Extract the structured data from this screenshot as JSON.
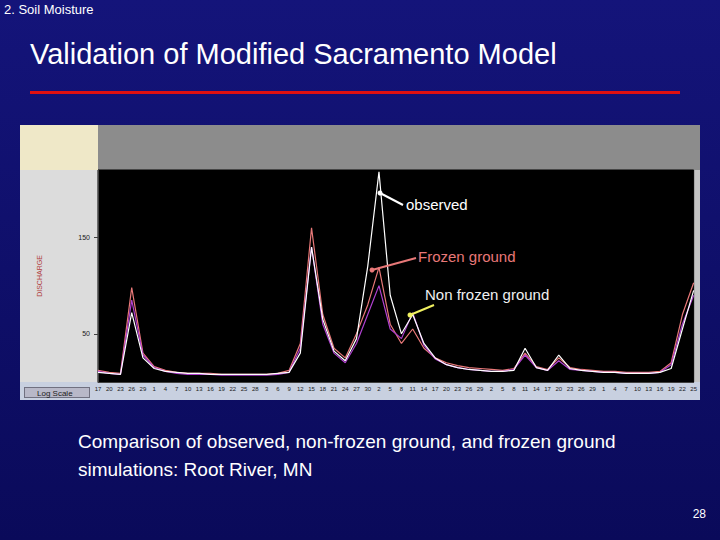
{
  "slide": {
    "section": "2. Soil Moisture",
    "title": "Validation of Modified Sacramento Model",
    "caption": "Comparison of observed, non-frozen ground, and frozen ground simulations: Root River, MN",
    "page": "28",
    "button": "Log Scale"
  },
  "chart_data": {
    "type": "line",
    "y_label": "DISCHARGE",
    "categories": [
      "17",
      "20",
      "23",
      "26",
      "29",
      "1",
      "4",
      "7",
      "10",
      "13",
      "16",
      "19",
      "22",
      "25",
      "28",
      "3",
      "6",
      "9",
      "12",
      "15",
      "18",
      "21",
      "24",
      "27",
      "30",
      "2",
      "5",
      "8",
      "11",
      "14",
      "17",
      "20",
      "23",
      "26",
      "29",
      "2",
      "5",
      "8",
      "11",
      "14",
      "17",
      "20",
      "23",
      "26",
      "29",
      "1",
      "4",
      "7",
      "10",
      "13",
      "16",
      "19",
      "22",
      "25"
    ],
    "series": [
      {
        "name": "observed",
        "color": "#ffffff",
        "values": [
          10,
          9,
          8,
          72,
          25,
          14,
          11,
          10,
          9,
          9,
          8,
          8,
          8,
          8,
          8,
          8,
          9,
          10,
          30,
          140,
          65,
          32,
          22,
          45,
          120,
          218,
          90,
          50,
          70,
          40,
          25,
          18,
          15,
          13,
          12,
          11,
          11,
          12,
          35,
          15,
          12,
          28,
          14,
          12,
          11,
          10,
          10,
          9,
          9,
          9,
          10,
          14,
          55,
          95
        ]
      },
      {
        "name": "Frozen ground",
        "color": "#e87878",
        "values": [
          12,
          10,
          9,
          98,
          30,
          16,
          12,
          10,
          9,
          9,
          9,
          8,
          8,
          8,
          8,
          8,
          9,
          12,
          40,
          160,
          70,
          35,
          25,
          50,
          80,
          119,
          60,
          40,
          55,
          35,
          25,
          20,
          17,
          15,
          14,
          13,
          12,
          14,
          30,
          16,
          13,
          25,
          15,
          13,
          12,
          11,
          11,
          10,
          10,
          10,
          11,
          20,
          70,
          103
        ]
      },
      {
        "name": "Non frozen ground",
        "color": "#b040d0",
        "values": [
          11,
          9,
          8,
          85,
          28,
          15,
          11,
          9,
          8,
          8,
          8,
          7,
          7,
          7,
          7,
          7,
          8,
          10,
          35,
          140,
          60,
          30,
          20,
          40,
          70,
          100,
          55,
          45,
          72,
          38,
          24,
          18,
          15,
          13,
          12,
          11,
          11,
          13,
          28,
          15,
          12,
          22,
          13,
          12,
          11,
          10,
          10,
          9,
          9,
          9,
          10,
          18,
          60,
          90
        ]
      }
    ],
    "ylim": [
      0,
      220
    ],
    "yticks": [
      50,
      150
    ],
    "grid": false
  }
}
